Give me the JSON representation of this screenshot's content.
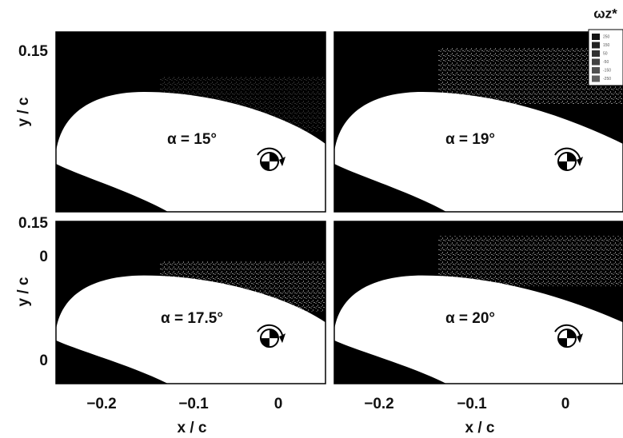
{
  "legend": {
    "title": "ωz*",
    "labels": [
      "250",
      "150",
      "50",
      "-50",
      "-150",
      "-250"
    ]
  },
  "axes": {
    "y_label": "y / c",
    "x_label": "x / c",
    "y_ticks": [
      "0.15",
      "0"
    ],
    "x_ticks": [
      "−0.2",
      "−0.1",
      "0"
    ]
  },
  "panels": [
    {
      "label": "α = 15°"
    },
    {
      "label": "α = 19°"
    },
    {
      "label": "α = 17.5°"
    },
    {
      "label": "α = 20°"
    }
  ]
}
